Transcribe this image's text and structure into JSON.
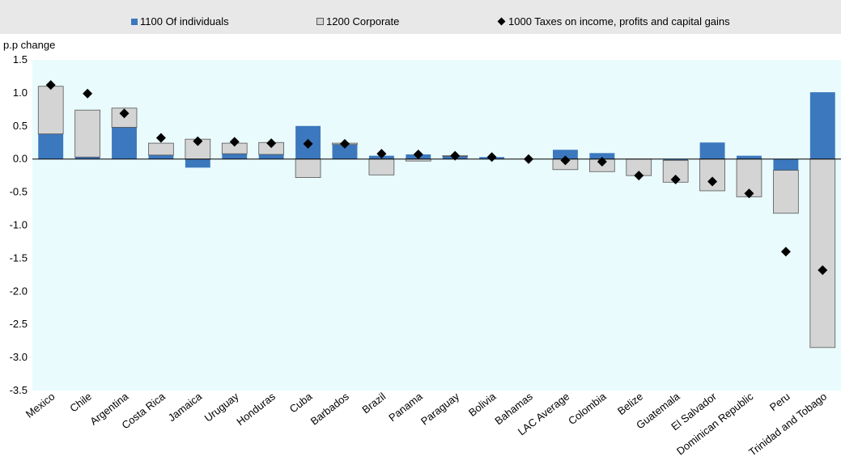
{
  "legend": {
    "individuals": "1100 Of individuals",
    "corporate": "1200 Corporate",
    "total": "1000 Taxes on income, profits and capital gains"
  },
  "colors": {
    "individuals": "#3c78be",
    "corporate": "#d4d4d4",
    "total": "#000000",
    "plot_bg": "#e9fbfd",
    "legend_bg": "#e8e8e8"
  },
  "chart_data": {
    "type": "bar",
    "ylabel": "p.p change",
    "ylim": [
      -3.5,
      1.5
    ],
    "yticks": [
      "1.5",
      "1.0",
      "0.5",
      "0.0",
      "-0.5",
      "-1.0",
      "-1.5",
      "-2.0",
      "-2.5",
      "-3.0",
      "-3.5"
    ],
    "ytick_values": [
      1.5,
      1.0,
      0.5,
      0.0,
      -0.5,
      -1.0,
      -1.5,
      -2.0,
      -2.5,
      -3.0,
      -3.5
    ],
    "legend_position": "top",
    "categories": [
      "Mexico",
      "Chile",
      "Argentina",
      "Costa Rica",
      "Jamaica",
      "Uruguay",
      "Honduras",
      "Cuba",
      "Barbados",
      "Brazil",
      "Panama",
      "Paraguay",
      "Bolivia",
      "Bahamas",
      "LAC Average",
      "Colombia",
      "Belize",
      "Guatemala",
      "El Salvador",
      "Dominican Republic",
      "Peru",
      "Trinidad and Tobago"
    ],
    "series": [
      {
        "name": "1100 Of individuals",
        "kind": "stacked-bar",
        "values": [
          0.38,
          0.03,
          0.48,
          0.06,
          -0.13,
          0.08,
          0.07,
          0.5,
          0.22,
          0.05,
          0.07,
          0.04,
          0.03,
          0.0,
          0.14,
          0.09,
          0.0,
          -0.02,
          0.25,
          0.05,
          -0.17,
          1.01
        ]
      },
      {
        "name": "1200 Corporate",
        "kind": "stacked-bar",
        "values": [
          0.72,
          0.71,
          0.29,
          0.18,
          0.3,
          0.16,
          0.18,
          -0.28,
          0.02,
          -0.24,
          -0.03,
          0.01,
          0.0,
          0.0,
          -0.16,
          -0.19,
          -0.25,
          -0.33,
          -0.48,
          -0.57,
          -0.65,
          -2.85
        ]
      },
      {
        "name": "1000 Taxes on income, profits and capital gains",
        "kind": "marker",
        "values": [
          1.12,
          0.99,
          0.69,
          0.32,
          0.27,
          0.26,
          0.24,
          0.23,
          0.23,
          0.08,
          0.07,
          0.05,
          0.03,
          0.0,
          -0.02,
          -0.04,
          -0.25,
          -0.31,
          -0.34,
          -0.52,
          -1.4,
          -1.68
        ]
      }
    ]
  }
}
